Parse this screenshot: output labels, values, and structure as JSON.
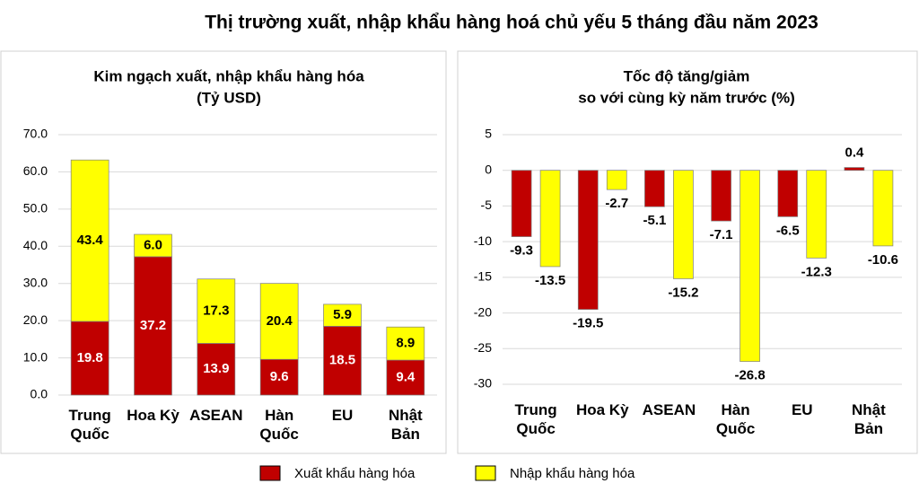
{
  "title": "Thị trường xuất, nhập khẩu hàng hoá chủ yếu 5 tháng đầu năm 2023",
  "chart_data": [
    {
      "type": "stacked-bar",
      "title": "Kim ngạch xuất, nhập khẩu hàng hóa",
      "subtitle": "(Tỷ USD)",
      "categories": [
        "Trung\nQuốc",
        "Hoa Kỳ",
        "ASEAN",
        "Hàn\nQuốc",
        "EU",
        "Nhật\nBản"
      ],
      "series": [
        {
          "name": "Xuất khẩu hàng hóa",
          "color": "#c00000",
          "values": [
            19.8,
            37.2,
            13.9,
            9.6,
            18.5,
            9.4
          ],
          "value_labels": [
            "19.8",
            "37.2",
            "13.9",
            "9.6",
            "18.5",
            "9.4"
          ]
        },
        {
          "name": "Nhập khẩu hàng hóa",
          "color": "#ffff00",
          "values": [
            43.4,
            6.0,
            17.3,
            20.4,
            5.9,
            8.9
          ],
          "value_labels": [
            "43.4",
            "6.0",
            "17.3",
            "20.4",
            "5.9",
            "8.9"
          ]
        }
      ],
      "ylim": [
        0,
        70
      ],
      "yticks": [
        {
          "value": 0,
          "label": "0.0"
        },
        {
          "value": 10,
          "label": "10.0"
        },
        {
          "value": 20,
          "label": "20.0"
        },
        {
          "value": 30,
          "label": "30.0"
        },
        {
          "value": 40,
          "label": "40.0"
        },
        {
          "value": 50,
          "label": "50.0"
        },
        {
          "value": 60,
          "label": "60.0"
        },
        {
          "value": 70,
          "label": "70.0"
        }
      ],
      "grid": true
    },
    {
      "type": "grouped-bar",
      "title": "Tốc độ tăng/giảm",
      "subtitle": "so với cùng kỳ năm trước (%)",
      "categories": [
        "Trung\nQuốc",
        "Hoa Kỳ",
        "ASEAN",
        "Hàn\nQuốc",
        "EU",
        "Nhật\nBản"
      ],
      "series": [
        {
          "color": "#c00000",
          "values": [
            -9.3,
            -19.5,
            -5.1,
            -7.1,
            -6.5,
            0.4
          ]
        },
        {
          "color": "#ffff00",
          "values": [
            -13.5,
            -2.7,
            -15.2,
            -26.8,
            -12.3,
            -10.6
          ]
        }
      ],
      "ylim": [
        -30,
        5
      ],
      "yticks": [
        -30,
        -25,
        -20,
        -15,
        -10,
        -5,
        0,
        5
      ],
      "grid": true
    }
  ]
}
